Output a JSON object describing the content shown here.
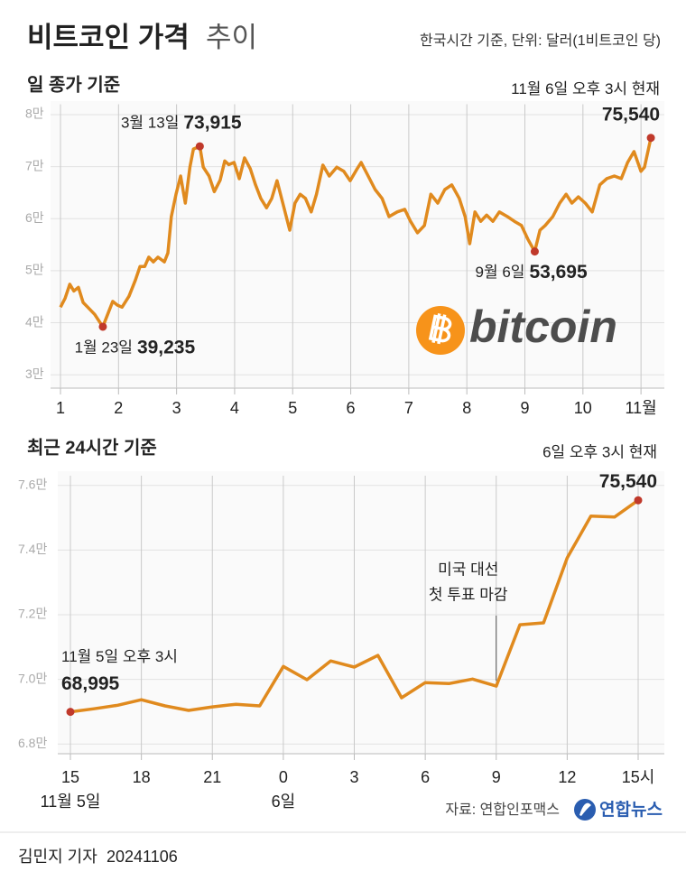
{
  "header": {
    "title": "비트코인 가격",
    "title_light": "추이",
    "note": "한국시간 기준, 단위: 달러(1비트코인 당)"
  },
  "chart_data": [
    {
      "type": "line",
      "subtitle": "일 종가 기준",
      "color": "#e08a1e",
      "x": [
        1.0,
        1.08,
        1.16,
        1.23,
        1.31,
        1.39,
        1.47,
        1.59,
        1.73,
        1.82,
        1.9,
        1.98,
        2.06,
        2.18,
        2.29,
        2.37,
        2.45,
        2.52,
        2.6,
        2.68,
        2.79,
        2.85,
        2.91,
        2.99,
        3.07,
        3.15,
        3.23,
        3.29,
        3.4,
        3.46,
        3.56,
        3.65,
        3.75,
        3.83,
        3.9,
        3.99,
        4.08,
        4.17,
        4.27,
        4.36,
        4.45,
        4.55,
        4.64,
        4.73,
        4.83,
        4.95,
        5.04,
        5.13,
        5.22,
        5.32,
        5.41,
        5.52,
        5.63,
        5.76,
        5.88,
        5.99,
        6.1,
        6.18,
        6.3,
        6.42,
        6.54,
        6.66,
        6.8,
        6.93,
        7.03,
        7.15,
        7.27,
        7.38,
        7.5,
        7.62,
        7.74,
        7.87,
        7.97,
        8.05,
        8.14,
        8.24,
        8.34,
        8.45,
        8.56,
        8.7,
        8.82,
        8.94,
        9.05,
        9.17,
        9.26,
        9.35,
        9.48,
        9.6,
        9.71,
        9.81,
        9.92,
        10.04,
        10.16,
        10.29,
        10.41,
        10.54,
        10.66,
        10.77,
        10.88,
        11.0,
        11.06,
        11.17
      ],
      "values": [
        43000,
        44700,
        47400,
        46100,
        46800,
        43900,
        43000,
        41600,
        39235,
        41800,
        44100,
        43400,
        43000,
        45100,
        48200,
        50800,
        50800,
        52600,
        51700,
        52600,
        51700,
        53400,
        60400,
        64700,
        68200,
        63000,
        69900,
        73400,
        73915,
        69900,
        68200,
        65200,
        67400,
        71100,
        70400,
        70800,
        67700,
        71700,
        69600,
        66500,
        63900,
        62100,
        63900,
        67300,
        63000,
        57800,
        63000,
        64700,
        63900,
        61300,
        64700,
        70300,
        68200,
        69900,
        69100,
        67300,
        69400,
        70800,
        68200,
        65600,
        63900,
        60400,
        61300,
        61800,
        59500,
        57300,
        58700,
        64700,
        63000,
        65600,
        66500,
        63900,
        60400,
        55200,
        61300,
        59500,
        60700,
        59500,
        61300,
        60400,
        59500,
        58700,
        56100,
        53695,
        57800,
        58700,
        60400,
        63000,
        64700,
        63000,
        64200,
        63000,
        61300,
        66500,
        67700,
        68200,
        67700,
        70800,
        72900,
        69100,
        69900,
        75540
      ],
      "xlim": [
        1,
        11.2
      ],
      "xticks": [
        1,
        2,
        3,
        4,
        5,
        6,
        7,
        8,
        9,
        10,
        {
          "value": 11,
          "label": "11월"
        }
      ],
      "ylim": [
        27500,
        82000
      ],
      "yticks": [
        {
          "value": 30000,
          "label": "3만"
        },
        {
          "value": 40000,
          "label": "4만"
        },
        {
          "value": 50000,
          "label": "5만"
        },
        {
          "value": 60000,
          "label": "6만"
        },
        {
          "value": 70000,
          "label": "7만"
        },
        {
          "value": 80000,
          "label": "8만"
        }
      ],
      "grid": true,
      "annotations": [
        {
          "text": "1월 23일",
          "x": 1.73,
          "value": 39235,
          "value_label": "39,235"
        },
        {
          "text": "3월 13일",
          "x": 3.4,
          "value": 73915,
          "value_label": "73,915"
        },
        {
          "text": "9월 6일",
          "x": 9.17,
          "value": 53695,
          "value_label": "53,695"
        },
        {
          "text": "11월 6일 오후 3시 현재",
          "x": 11.17,
          "value": 75540,
          "value_label": "75,540"
        }
      ],
      "logo": "bitcoin"
    },
    {
      "type": "line",
      "subtitle": "최근 24시간 기준",
      "color": "#e08a1e",
      "x": [
        0,
        1,
        2,
        3,
        4,
        5,
        6,
        7,
        8,
        9,
        10,
        11,
        12,
        13,
        14,
        15,
        16,
        17,
        18,
        19,
        20,
        21,
        22,
        23,
        24
      ],
      "values": [
        68995,
        69090,
        69200,
        69370,
        69180,
        69040,
        69150,
        69230,
        69180,
        70400,
        69990,
        70570,
        70380,
        70740,
        69430,
        69900,
        69870,
        70010,
        69790,
        71690,
        71750,
        73760,
        75050,
        75020,
        75540
      ],
      "xlim": [
        0,
        24
      ],
      "xticks": [
        {
          "value": 0,
          "label": "15"
        },
        {
          "value": 3,
          "label": "18"
        },
        {
          "value": 6,
          "label": "21"
        },
        {
          "value": 9,
          "label": "0"
        },
        {
          "value": 12,
          "label": "3"
        },
        {
          "value": 15,
          "label": "6"
        },
        {
          "value": 18,
          "label": "9"
        },
        {
          "value": 21,
          "label": "12"
        },
        {
          "value": 24,
          "label": "15시"
        }
      ],
      "x_sublabels": [
        {
          "x": 0,
          "label": "11월 5일"
        },
        {
          "x": 9,
          "label": "6일"
        }
      ],
      "ylim": [
        67700,
        76300
      ],
      "yticks": [
        {
          "value": 68000,
          "label": "6.8만"
        },
        {
          "value": 70000,
          "label": "7.0만"
        },
        {
          "value": 72000,
          "label": "7.2만"
        },
        {
          "value": 74000,
          "label": "7.4만"
        },
        {
          "value": 76000,
          "label": "7.6만"
        }
      ],
      "grid": true,
      "annotations": [
        {
          "text": "11월 5일 오후 3시",
          "x": 0,
          "value": 68995,
          "value_label": "68,995"
        },
        {
          "text": "6일 오후 3시 현재",
          "x": 24,
          "value": 75540,
          "value_label": "75,540"
        }
      ],
      "event": {
        "text": [
          "미국 대선",
          "첫 투표 마감"
        ],
        "x": 18
      }
    }
  ],
  "footer": {
    "source": "자료: 연합인포맥스",
    "agency": "연합뉴스",
    "byline": "김민지 기자",
    "date": "20241106"
  }
}
